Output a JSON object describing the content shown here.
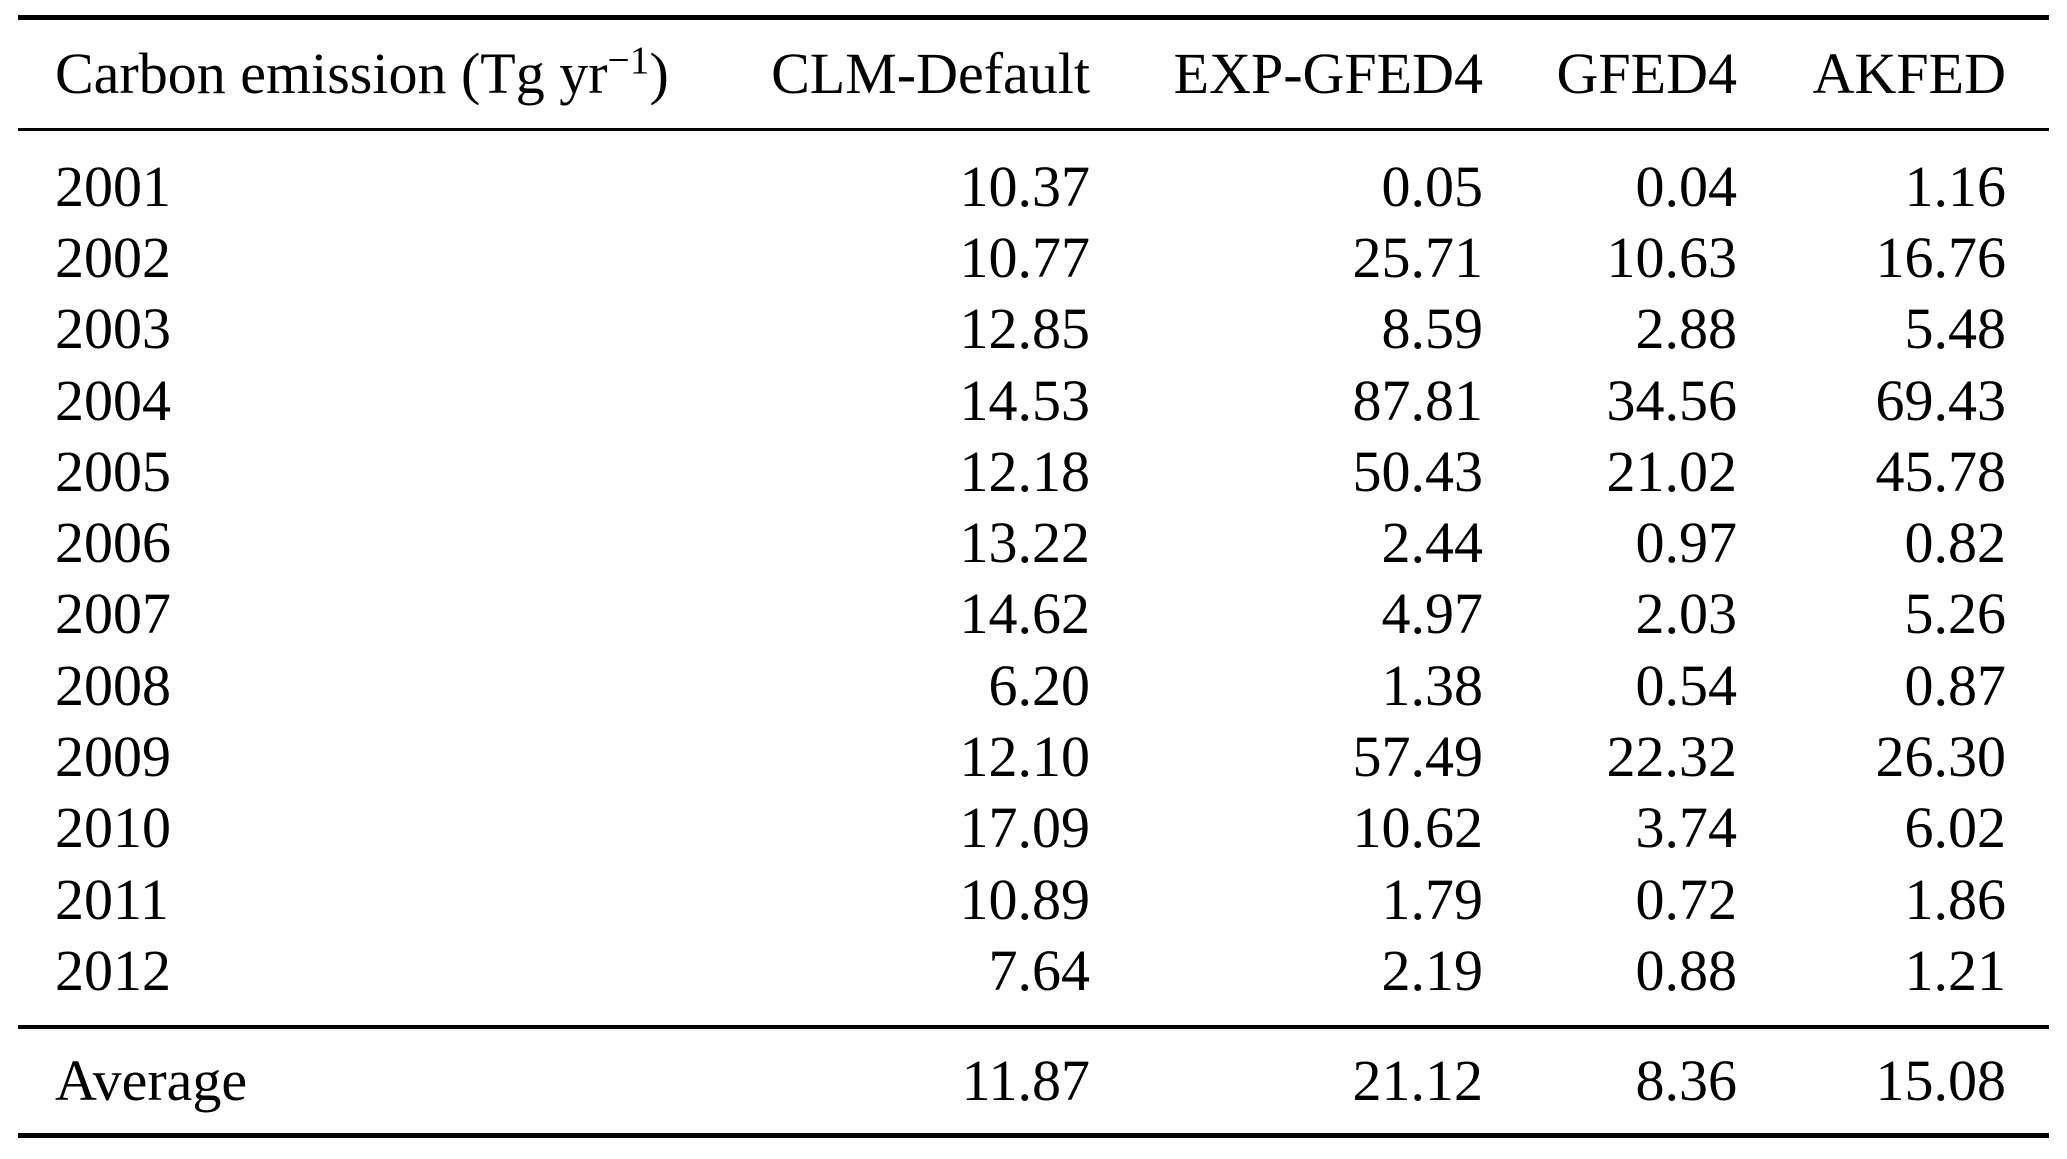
{
  "table": {
    "header": {
      "unit_prefix": "Carbon emission (Tg yr",
      "unit_sup": "−1",
      "unit_suffix": ")",
      "columns": [
        "CLM-Default",
        "EXP-GFED4",
        "GFED4",
        "AKFED"
      ]
    },
    "rows": [
      {
        "label": "2001",
        "values": [
          "10.37",
          "0.05",
          "0.04",
          "1.16"
        ]
      },
      {
        "label": "2002",
        "values": [
          "10.77",
          "25.71",
          "10.63",
          "16.76"
        ]
      },
      {
        "label": "2003",
        "values": [
          "12.85",
          "8.59",
          "2.88",
          "5.48"
        ]
      },
      {
        "label": "2004",
        "values": [
          "14.53",
          "87.81",
          "34.56",
          "69.43"
        ]
      },
      {
        "label": "2005",
        "values": [
          "12.18",
          "50.43",
          "21.02",
          "45.78"
        ]
      },
      {
        "label": "2006",
        "values": [
          "13.22",
          "2.44",
          "0.97",
          "0.82"
        ]
      },
      {
        "label": "2007",
        "values": [
          "14.62",
          "4.97",
          "2.03",
          "5.26"
        ]
      },
      {
        "label": "2008",
        "values": [
          "6.20",
          "1.38",
          "0.54",
          "0.87"
        ]
      },
      {
        "label": "2009",
        "values": [
          "12.10",
          "57.49",
          "22.32",
          "26.30"
        ]
      },
      {
        "label": "2010",
        "values": [
          "17.09",
          "10.62",
          "3.74",
          "6.02"
        ]
      },
      {
        "label": "2011",
        "values": [
          "10.89",
          "1.79",
          "0.72",
          "1.86"
        ]
      },
      {
        "label": "2012",
        "values": [
          "7.64",
          "2.19",
          "0.88",
          "1.21"
        ]
      }
    ],
    "footer": {
      "label": "Average",
      "values": [
        "11.87",
        "21.12",
        "8.36",
        "15.08"
      ]
    }
  },
  "chart_data": {
    "type": "table",
    "title": "Carbon emission (Tg yr-1)",
    "categories": [
      "2001",
      "2002",
      "2003",
      "2004",
      "2005",
      "2006",
      "2007",
      "2008",
      "2009",
      "2010",
      "2011",
      "2012",
      "Average"
    ],
    "series": [
      {
        "name": "CLM-Default",
        "values": [
          10.37,
          10.77,
          12.85,
          14.53,
          12.18,
          13.22,
          14.62,
          6.2,
          12.1,
          17.09,
          10.89,
          7.64,
          11.87
        ]
      },
      {
        "name": "EXP-GFED4",
        "values": [
          0.05,
          25.71,
          8.59,
          87.81,
          50.43,
          2.44,
          4.97,
          1.38,
          57.49,
          10.62,
          1.79,
          2.19,
          21.12
        ]
      },
      {
        "name": "GFED4",
        "values": [
          0.04,
          10.63,
          2.88,
          34.56,
          21.02,
          0.97,
          2.03,
          0.54,
          22.32,
          3.74,
          0.72,
          0.88,
          8.36
        ]
      },
      {
        "name": "AKFED",
        "values": [
          1.16,
          16.76,
          5.48,
          69.43,
          45.78,
          0.82,
          5.26,
          0.87,
          26.3,
          6.02,
          1.86,
          1.21,
          15.08
        ]
      }
    ]
  }
}
